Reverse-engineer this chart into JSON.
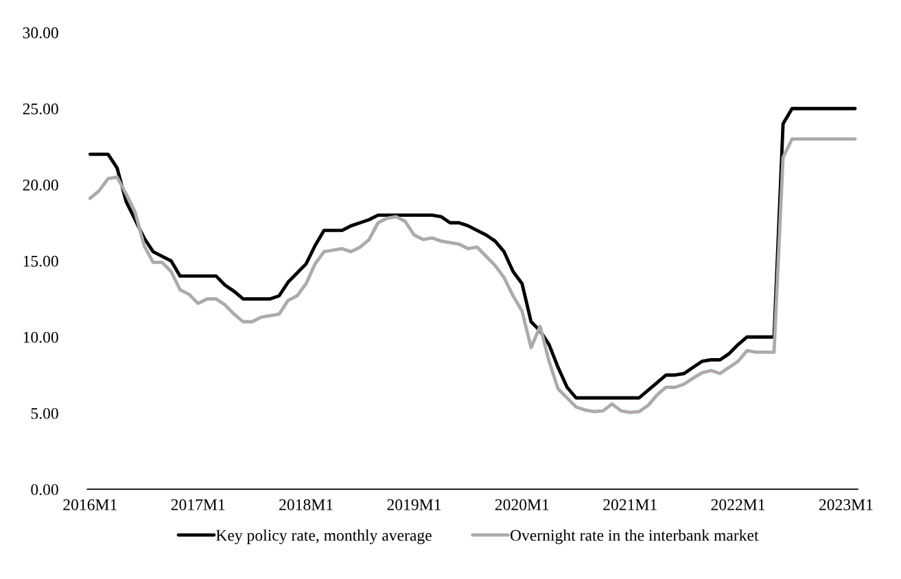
{
  "chart_data": {
    "type": "line",
    "categories": [
      "2016M1",
      null,
      null,
      null,
      null,
      null,
      null,
      null,
      null,
      null,
      null,
      null,
      "2017M1",
      null,
      null,
      null,
      null,
      null,
      null,
      null,
      null,
      null,
      null,
      null,
      "2018M1",
      null,
      null,
      null,
      null,
      null,
      null,
      null,
      null,
      null,
      null,
      null,
      "2019M1",
      null,
      null,
      null,
      null,
      null,
      null,
      null,
      null,
      null,
      null,
      null,
      "2020M1",
      null,
      null,
      null,
      null,
      null,
      null,
      null,
      null,
      null,
      null,
      null,
      "2021M1",
      null,
      null,
      null,
      null,
      null,
      null,
      null,
      null,
      null,
      null,
      null,
      "2022M1",
      null,
      null,
      null,
      null,
      null,
      null,
      null,
      null,
      null,
      null,
      null,
      "2023M1",
      null
    ],
    "series": [
      {
        "name": "Key policy rate, monthly average",
        "color": "#000000",
        "values": [
          22,
          22,
          22,
          21.1,
          18.9,
          17.7,
          16.5,
          15.6,
          15.3,
          15.0,
          14,
          14,
          14,
          14,
          14,
          13.4,
          13.0,
          12.5,
          12.5,
          12.5,
          12.5,
          12.7,
          13.6,
          14.2,
          14.8,
          16.0,
          17,
          17,
          17,
          17.3,
          17.5,
          17.7,
          18,
          18,
          18,
          18,
          18,
          18,
          18,
          17.9,
          17.5,
          17.5,
          17.3,
          17.0,
          16.7,
          16.3,
          15.6,
          14.3,
          13.5,
          11.0,
          10.4,
          9.5,
          8.0,
          6.7,
          6,
          6,
          6,
          6,
          6,
          6,
          6,
          6,
          6.5,
          7.0,
          7.5,
          7.5,
          7.6,
          8.0,
          8.4,
          8.5,
          8.5,
          8.9,
          9.5,
          10,
          10,
          10,
          10,
          24,
          25,
          25,
          25,
          25,
          25,
          25,
          25,
          25
        ]
      },
      {
        "name": "Overnight rate in the interbank market",
        "color": "#aeaaaa",
        "values": [
          19.1,
          19.6,
          20.4,
          20.5,
          19.4,
          18.2,
          16.0,
          14.9,
          14.9,
          14.3,
          13.1,
          12.8,
          12.2,
          12.5,
          12.5,
          12.1,
          11.5,
          11.0,
          11.0,
          11.3,
          11.4,
          11.5,
          12.4,
          12.7,
          13.5,
          14.8,
          15.6,
          15.7,
          15.8,
          15.6,
          15.9,
          16.4,
          17.5,
          17.8,
          17.9,
          17.6,
          16.7,
          16.4,
          16.5,
          16.3,
          16.2,
          16.1,
          15.8,
          15.9,
          15.3,
          14.7,
          13.9,
          12.7,
          11.7,
          9.3,
          10.7,
          8.4,
          6.6,
          6.0,
          5.4,
          5.2,
          5.1,
          5.15,
          5.6,
          5.15,
          5.05,
          5.1,
          5.5,
          6.2,
          6.7,
          6.7,
          6.9,
          7.3,
          7.65,
          7.8,
          7.6,
          8.0,
          8.4,
          9.1,
          9.0,
          9.0,
          9.0,
          21.8,
          23.0,
          23.0,
          23.0,
          23.0,
          23.0,
          23.0,
          23.0,
          23.0
        ]
      }
    ],
    "ylim": [
      0,
      30
    ],
    "yticks": [
      {
        "value": 0,
        "label": "0.00"
      },
      {
        "value": 5,
        "label": "5.00"
      },
      {
        "value": 10,
        "label": "10.00"
      },
      {
        "value": 15,
        "label": "15.00"
      },
      {
        "value": 20,
        "label": "20.00"
      },
      {
        "value": 25,
        "label": "25.00"
      },
      {
        "value": 30,
        "label": "30.00"
      }
    ],
    "grid": false,
    "legend": "bottom",
    "marker": "none",
    "line_style": "solid"
  }
}
